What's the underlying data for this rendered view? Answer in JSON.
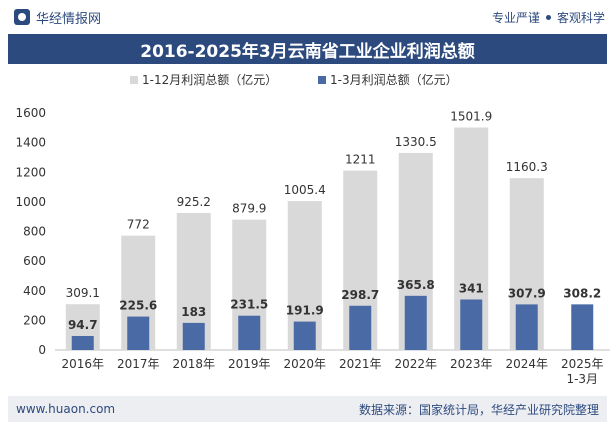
{
  "header": {
    "brand": "华经情报网",
    "slogan_left": "专业严谨",
    "slogan_right": "客观科学"
  },
  "footer": {
    "website": "www.huaon.com",
    "source": "数据来源：国家统计局，华经产业研究院整理"
  },
  "colors": {
    "accent": "#2d4a7e",
    "series_full_year": "#d9d9d9",
    "series_q1": "#4a6aa5"
  },
  "chart_data": {
    "type": "bar",
    "title": "2016-2025年3月云南省工业企业利润总额",
    "categories": [
      "2016年",
      "2017年",
      "2018年",
      "2019年",
      "2020年",
      "2021年",
      "2022年",
      "2023年",
      "2024年",
      "2025年\n1-3月"
    ],
    "series": [
      {
        "name": "1-12月利润总额（亿元）",
        "values": [
          309.1,
          772,
          925.2,
          879.9,
          1005.4,
          1211,
          1330.5,
          1501.9,
          1160.3,
          null
        ]
      },
      {
        "name": "1-3月利润总额（亿元）",
        "values": [
          94.7,
          225.6,
          183,
          231.5,
          191.9,
          298.7,
          365.8,
          341,
          307.9,
          308.2
        ]
      }
    ],
    "ylim": [
      0,
      1600
    ],
    "yticks": [
      0,
      200,
      400,
      600,
      800,
      1000,
      1200,
      1400,
      1600
    ],
    "grid": false,
    "legend": "top-center"
  }
}
